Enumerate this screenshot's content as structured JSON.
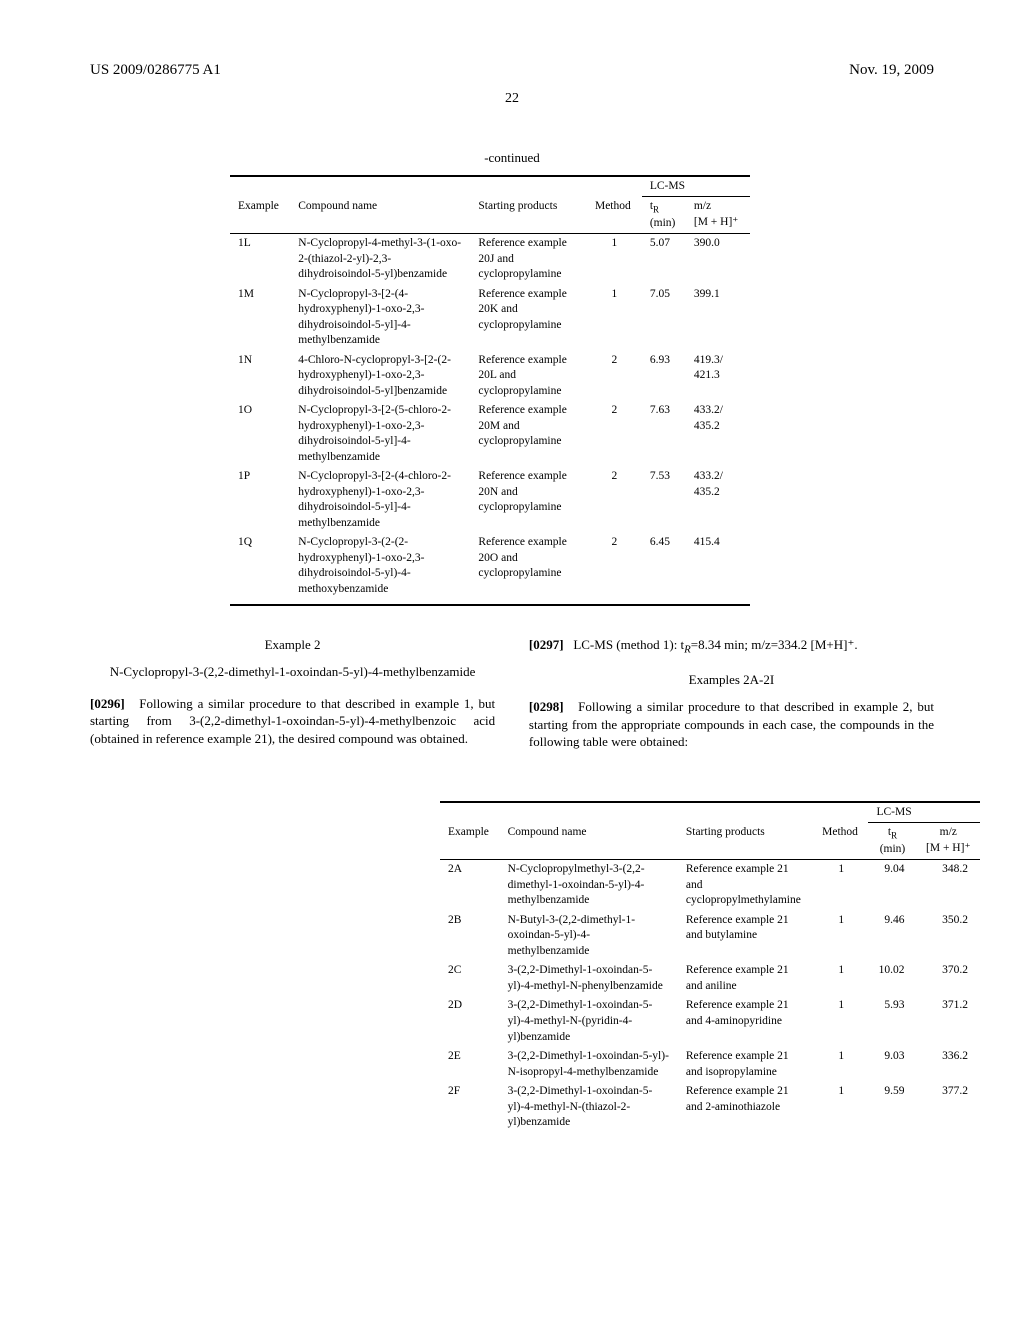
{
  "header": {
    "doc_number": "US 2009/0286775 A1",
    "date": "Nov. 19, 2009",
    "page": "22"
  },
  "table1": {
    "continued_label": "-continued",
    "headers": {
      "lcms": "LC-MS",
      "example": "Example",
      "compound": "Compound name",
      "starting": "Starting products",
      "method": "Method",
      "tr": "t",
      "tr_sub": "R",
      "tr_unit": "(min)",
      "mz": "m/z",
      "mz_unit": "[M + H]⁺"
    },
    "rows": [
      {
        "ex": "1L",
        "cmpd": "N-Cyclopropyl-4-methyl-3-(1-oxo-2-(thiazol-2-yl)-2,3-dihydroisoindol-5-yl)benzamide",
        "start": "Reference example 20J and cyclopropylamine",
        "method": "1",
        "tr": "5.07",
        "mz": "390.0"
      },
      {
        "ex": "1M",
        "cmpd": "N-Cyclopropyl-3-[2-(4-hydroxyphenyl)-1-oxo-2,3-dihydroisoindol-5-yl]-4-methylbenzamide",
        "start": "Reference example 20K and cyclopropylamine",
        "method": "1",
        "tr": "7.05",
        "mz": "399.1"
      },
      {
        "ex": "1N",
        "cmpd": "4-Chloro-N-cyclopropyl-3-[2-(2-hydroxyphenyl)-1-oxo-2,3-dihydroisoindol-5-yl]benzamide",
        "start": "Reference example 20L and cyclopropylamine",
        "method": "2",
        "tr": "6.93",
        "mz": "419.3/\n421.3"
      },
      {
        "ex": "1O",
        "cmpd": "N-Cyclopropyl-3-[2-(5-chloro-2-hydroxyphenyl)-1-oxo-2,3-dihydroisoindol-5-yl]-4-methylbenzamide",
        "start": "Reference example 20M and cyclopropylamine",
        "method": "2",
        "tr": "7.63",
        "mz": "433.2/\n435.2"
      },
      {
        "ex": "1P",
        "cmpd": "N-Cyclopropyl-3-[2-(4-chloro-2-hydroxyphenyl)-1-oxo-2,3-dihydroisoindol-5-yl]-4-methylbenzamide",
        "start": "Reference example 20N and cyclopropylamine",
        "method": "2",
        "tr": "7.53",
        "mz": "433.2/\n435.2"
      },
      {
        "ex": "1Q",
        "cmpd": "N-Cyclopropyl-3-(2-(2-hydroxyphenyl)-1-oxo-2,3-dihydroisoindol-5-yl)-4-methoxybenzamide",
        "start": "Reference example 20O and cyclopropylamine",
        "method": "2",
        "tr": "6.45",
        "mz": "415.4"
      }
    ]
  },
  "example2": {
    "title": "Example 2",
    "compound": "N-Cyclopropyl-3-(2,2-dimethyl-1-oxoindan-5-yl)-4-methylbenzamide",
    "para1_num": "[0296]",
    "para1": "Following a similar procedure to that described in example 1, but starting from 3-(2,2-dimethyl-1-oxoindan-5-yl)-4-methylbenzoic acid (obtained in reference example 21), the desired compound was obtained.",
    "para2_num": "[0297]",
    "para2": "LC-MS (method 1): tR=8.34 min; m/z=334.2 [M+H]⁺.",
    "subtitle": "Examples 2A-2I",
    "para3_num": "[0298]",
    "para3": "Following a similar procedure to that described in example 2, but starting from the appropriate compounds in each case, the compounds in the following table were obtained:"
  },
  "table2": {
    "headers": {
      "lcms": "LC-MS",
      "example": "Example",
      "compound": "Compound name",
      "starting": "Starting products",
      "method": "Method",
      "tr": "t",
      "tr_sub": "R",
      "tr_unit": "(min)",
      "mz": "m/z",
      "mz_unit": "[M + H]⁺"
    },
    "rows": [
      {
        "ex": "2A",
        "cmpd": "N-Cyclopropylmethyl-3-(2,2-dimethyl-1-oxoindan-5-yl)-4-methylbenzamide",
        "start": "Reference example 21 and cyclopropylmethylamine",
        "method": "1",
        "tr": "9.04",
        "mz": "348.2"
      },
      {
        "ex": "2B",
        "cmpd": "N-Butyl-3-(2,2-dimethyl-1-oxoindan-5-yl)-4-methylbenzamide",
        "start": "Reference example 21 and butylamine",
        "method": "1",
        "tr": "9.46",
        "mz": "350.2"
      },
      {
        "ex": "2C",
        "cmpd": "3-(2,2-Dimethyl-1-oxoindan-5-yl)-4-methyl-N-phenylbenzamide",
        "start": "Reference example 21 and aniline",
        "method": "1",
        "tr": "10.02",
        "mz": "370.2"
      },
      {
        "ex": "2D",
        "cmpd": "3-(2,2-Dimethyl-1-oxoindan-5-yl)-4-methyl-N-(pyridin-4-yl)benzamide",
        "start": "Reference example 21 and 4-aminopyridine",
        "method": "1",
        "tr": "5.93",
        "mz": "371.2"
      },
      {
        "ex": "2E",
        "cmpd": "3-(2,2-Dimethyl-1-oxoindan-5-yl)-N-isopropyl-4-methylbenzamide",
        "start": "Reference example 21 and isopropylamine",
        "method": "1",
        "tr": "9.03",
        "mz": "336.2"
      },
      {
        "ex": "2F",
        "cmpd": "3-(2,2-Dimethyl-1-oxoindan-5-yl)-4-methyl-N-(thiazol-2-yl)benzamide",
        "start": "Reference example 21 and 2-aminothiazole",
        "method": "1",
        "tr": "9.59",
        "mz": "377.2"
      }
    ]
  }
}
